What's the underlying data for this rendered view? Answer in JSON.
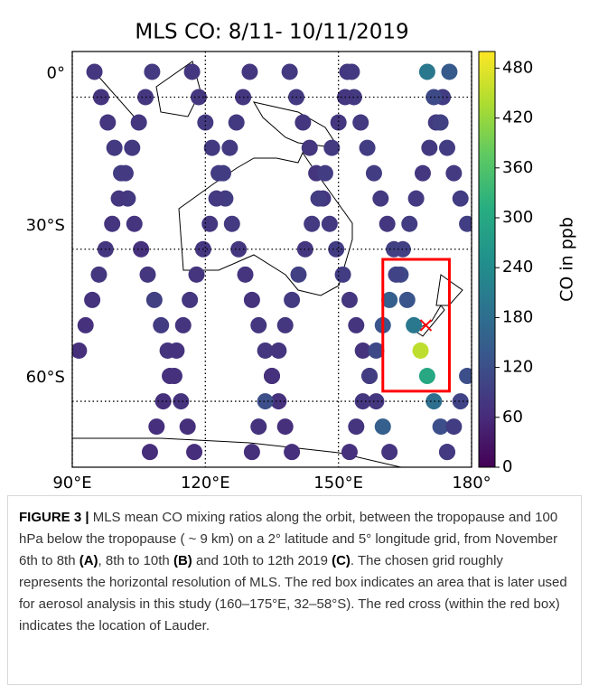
{
  "chart_data": {
    "type": "scatter",
    "title": "MLS CO: 8/11- 10/11/2019",
    "xlim": [
      90,
      180
    ],
    "xticks": [
      {
        "value": 90,
        "label": "90°E"
      },
      {
        "value": 120,
        "label": "120°E"
      },
      {
        "value": 150,
        "label": "150°E"
      },
      {
        "value": 180,
        "label": "180°"
      }
    ],
    "ylim": [
      -73,
      9
    ],
    "yticks": [
      {
        "value": 0,
        "label": "0°"
      },
      {
        "value": -30,
        "label": "30°S"
      },
      {
        "value": -60,
        "label": "60°S"
      }
    ],
    "grid": true,
    "colormap": "viridis",
    "clim": [
      0,
      500
    ],
    "cticks": [
      0,
      60,
      120,
      180,
      240,
      300,
      360,
      420,
      480
    ],
    "colorbar_label": "CO in ppb",
    "x": [
      95,
      96.5,
      98,
      99.5,
      101,
      102.5,
      104,
      105.5,
      107,
      108.5,
      110,
      111.5,
      113,
      114.5,
      116,
      117.5,
      117,
      118.5,
      120,
      121.5,
      123,
      124.5,
      126,
      127.5,
      129,
      130.5,
      132,
      133.5,
      135,
      136.5,
      138,
      139.5,
      139,
      140.5,
      142,
      143.5,
      145,
      146.5,
      148,
      149.5,
      151,
      152.5,
      154,
      155.5,
      157,
      158.5,
      160,
      161.5,
      152,
      153.5,
      155,
      156.5,
      158,
      159.5,
      161,
      162.5,
      164,
      165.5,
      167,
      168.5,
      170,
      171.5,
      173,
      174.5,
      108,
      106.5,
      105,
      103.5,
      102,
      100.5,
      99,
      97.5,
      96,
      94.5,
      93,
      91.5,
      130,
      128.5,
      127,
      125.5,
      124,
      122.5,
      121,
      119.5,
      118,
      116.5,
      115,
      113.5,
      112,
      110.5,
      109,
      107.5,
      153,
      151.5,
      150,
      148.5,
      147,
      145.5,
      144,
      142.5,
      141,
      139.5,
      138,
      136.5,
      135,
      133.5,
      132,
      130.5,
      175,
      173.5,
      172,
      170.5,
      169,
      167.5,
      166,
      164.5,
      163,
      161.5,
      160,
      158.5,
      157,
      155.5,
      154,
      152.5,
      179,
      177.5,
      176,
      174.5,
      170,
      171.5,
      173,
      174.5,
      176,
      177.5,
      179
    ],
    "y": [
      5,
      0,
      -5,
      -10,
      -15,
      -20,
      -25,
      -30,
      -35,
      -40,
      -45,
      -50,
      -55,
      -60,
      -65,
      -70,
      5,
      0,
      -5,
      -10,
      -15,
      -20,
      -25,
      -30,
      -35,
      -40,
      -45,
      -50,
      -55,
      -60,
      -65,
      -70,
      5,
      0,
      -5,
      -10,
      -15,
      -20,
      -25,
      -30,
      -35,
      -40,
      -45,
      -50,
      -55,
      -60,
      -65,
      -70,
      5,
      0,
      -5,
      -10,
      -15,
      -20,
      -25,
      -30,
      -35,
      -40,
      -45,
      -50,
      -55,
      -60,
      -65,
      -70,
      5,
      0,
      -5,
      -10,
      -15,
      -20,
      -25,
      -30,
      -35,
      -40,
      -45,
      -50,
      5,
      0,
      -5,
      -10,
      -15,
      -20,
      -25,
      -30,
      -35,
      -40,
      -45,
      -50,
      -55,
      -60,
      -65,
      -70,
      5,
      0,
      -5,
      -10,
      -15,
      -20,
      -25,
      -30,
      -35,
      -40,
      -45,
      -50,
      -55,
      -60,
      -65,
      -70,
      5,
      0,
      -5,
      -10,
      -15,
      -20,
      -25,
      -30,
      -35,
      -40,
      -45,
      -50,
      -55,
      -60,
      -65,
      -70,
      -55,
      -60,
      -65,
      -70,
      5,
      0,
      -5,
      -10,
      -15,
      -20,
      -25
    ],
    "values": [
      80,
      75,
      78,
      85,
      90,
      82,
      75,
      70,
      80,
      95,
      88,
      75,
      70,
      72,
      68,
      65,
      78,
      80,
      85,
      82,
      88,
      90,
      85,
      80,
      75,
      72,
      78,
      80,
      76,
      70,
      68,
      66,
      82,
      85,
      80,
      78,
      75,
      80,
      85,
      90,
      88,
      80,
      75,
      72,
      70,
      78,
      150,
      74,
      80,
      82,
      85,
      88,
      90,
      85,
      80,
      95,
      110,
      130,
      200,
      450,
      300,
      180,
      120,
      90,
      85,
      80,
      78,
      82,
      85,
      80,
      75,
      78,
      80,
      72,
      70,
      68,
      80,
      78,
      82,
      85,
      88,
      85,
      80,
      78,
      76,
      80,
      75,
      72,
      70,
      68,
      66,
      64,
      82,
      80,
      78,
      85,
      90,
      88,
      84,
      80,
      95,
      85,
      80,
      75,
      70,
      120,
      72,
      68,
      140,
      90,
      85,
      82,
      80,
      85,
      90,
      95,
      100,
      150,
      130,
      110,
      90,
      80,
      75,
      70,
      120,
      100,
      90,
      85,
      200,
      110,
      95,
      90,
      85,
      88,
      92
    ],
    "region_box": {
      "lon": [
        160,
        175
      ],
      "lat": [
        -58,
        -32
      ],
      "color": "#ff0000"
    },
    "lauder": {
      "lon": 169.7,
      "lat": -45,
      "color": "#ff0000"
    }
  },
  "caption": [
    {
      "text": "FIGURE 3 |",
      "bold": true
    },
    {
      "text": " MLS mean CO mixing ratios along the orbit, between the tropopause and 100 hPa below the tropopause ( ~ 9 km) on a 2° latitude and 5° longitude grid, from November 6th to 8th ",
      "bold": false
    },
    {
      "text": "(A)",
      "bold": true
    },
    {
      "text": ", 8th to 10th ",
      "bold": false
    },
    {
      "text": "(B)",
      "bold": true
    },
    {
      "text": " and 10th to 12th 2019 ",
      "bold": false
    },
    {
      "text": "(C)",
      "bold": true
    },
    {
      "text": ". The chosen grid roughly represents the horizontal resolution of MLS. The red box indicates an area that is later used for aerosol analysis in this study (160–175°E, 32–58°S). The red cross (within the red box) indicates the location of Lauder.",
      "bold": false
    }
  ]
}
